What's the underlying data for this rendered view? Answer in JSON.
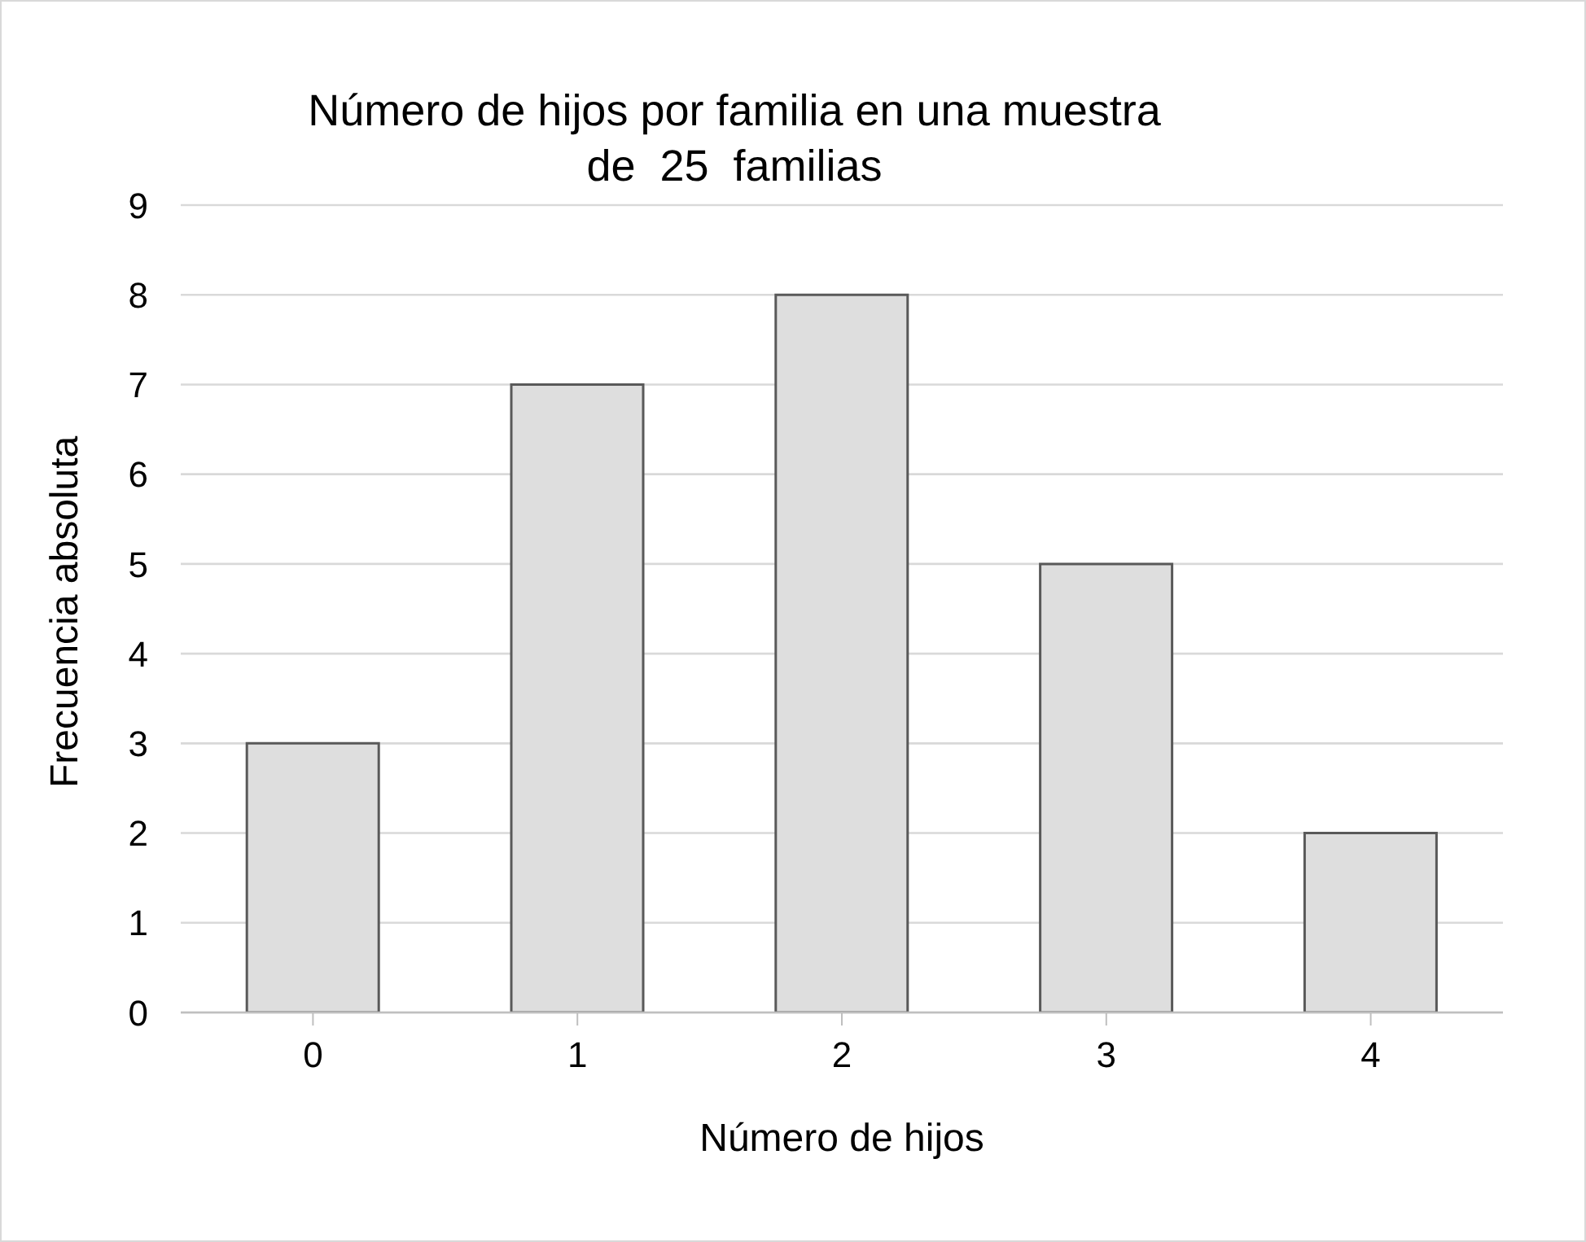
{
  "chart_data": {
    "type": "bar",
    "title": "Número de hijos por familia en una muestra de  25  familias",
    "xlabel": "Número de hijos",
    "ylabel": "Frecuencia absoluta",
    "categories": [
      "0",
      "1",
      "2",
      "3",
      "4"
    ],
    "values": [
      3,
      7,
      8,
      5,
      2
    ],
    "color": "#dedede",
    "ylim": [
      0,
      9
    ],
    "yticks": [
      0,
      1,
      2,
      3,
      4,
      5,
      6,
      7,
      8,
      9
    ],
    "grid": "y",
    "legend": false
  }
}
